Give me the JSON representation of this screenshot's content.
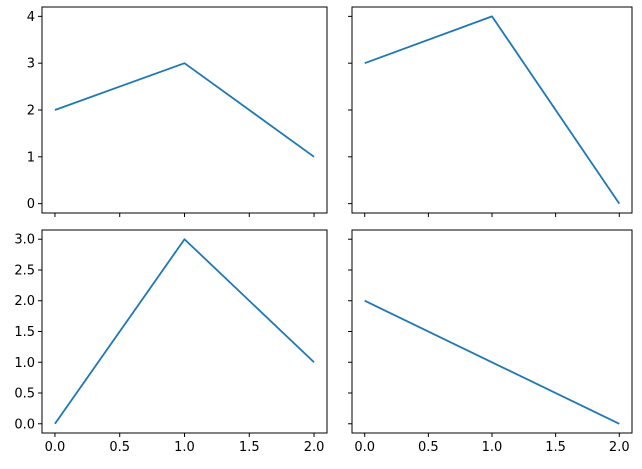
{
  "figure": {
    "background": "#ffffff",
    "axes_edge_color": "#000000",
    "tick_color": "#000000",
    "line_color": "#1f77b4"
  },
  "chart_data": [
    {
      "id": "top-left",
      "type": "line",
      "x": [
        0,
        1,
        2
      ],
      "y": [
        2,
        3,
        1
      ],
      "line_color": "#1f77b4",
      "xlim": [
        -0.1,
        2.1
      ],
      "ylim": [
        -0.2,
        4.2
      ],
      "xticks": [
        0,
        0.5,
        1,
        1.5,
        2
      ],
      "xticklabels": [
        "",
        "",
        "",
        "",
        ""
      ],
      "yticks": [
        0,
        1,
        2,
        3,
        4
      ],
      "yticklabels": [
        "0",
        "1",
        "2",
        "3",
        "4"
      ],
      "grid": false
    },
    {
      "id": "top-right",
      "type": "line",
      "x": [
        0,
        1,
        2
      ],
      "y": [
        3,
        4,
        0
      ],
      "line_color": "#1f77b4",
      "xlim": [
        -0.1,
        2.1
      ],
      "ylim": [
        -0.2,
        4.2
      ],
      "xticks": [
        0,
        0.5,
        1,
        1.5,
        2
      ],
      "xticklabels": [
        "",
        "",
        "",
        "",
        ""
      ],
      "yticks": [
        0,
        1,
        2,
        3,
        4
      ],
      "yticklabels": [
        "",
        "",
        "",
        "",
        ""
      ],
      "grid": false
    },
    {
      "id": "bottom-left",
      "type": "line",
      "x": [
        0,
        1,
        2
      ],
      "y": [
        0,
        3,
        1
      ],
      "line_color": "#1f77b4",
      "xlim": [
        -0.1,
        2.1
      ],
      "ylim": [
        -0.15,
        3.15
      ],
      "xticks": [
        0,
        0.5,
        1,
        1.5,
        2
      ],
      "xticklabels": [
        "0.0",
        "0.5",
        "1.0",
        "1.5",
        "2.0"
      ],
      "yticks": [
        0,
        0.5,
        1,
        1.5,
        2,
        2.5,
        3
      ],
      "yticklabels": [
        "0.0",
        "0.5",
        "1.0",
        "1.5",
        "2.0",
        "2.5",
        "3.0"
      ],
      "grid": false
    },
    {
      "id": "bottom-right",
      "type": "line",
      "x": [
        0,
        1,
        2
      ],
      "y": [
        2,
        1,
        0
      ],
      "line_color": "#1f77b4",
      "xlim": [
        -0.1,
        2.1
      ],
      "ylim": [
        -0.15,
        3.15
      ],
      "xticks": [
        0,
        0.5,
        1,
        1.5,
        2
      ],
      "xticklabels": [
        "0.0",
        "0.5",
        "1.0",
        "1.5",
        "2.0"
      ],
      "yticks": [
        0,
        0.5,
        1,
        1.5,
        2,
        2.5,
        3
      ],
      "yticklabels": [
        "",
        "",
        "",
        "",
        "",
        "",
        ""
      ],
      "grid": false
    }
  ]
}
